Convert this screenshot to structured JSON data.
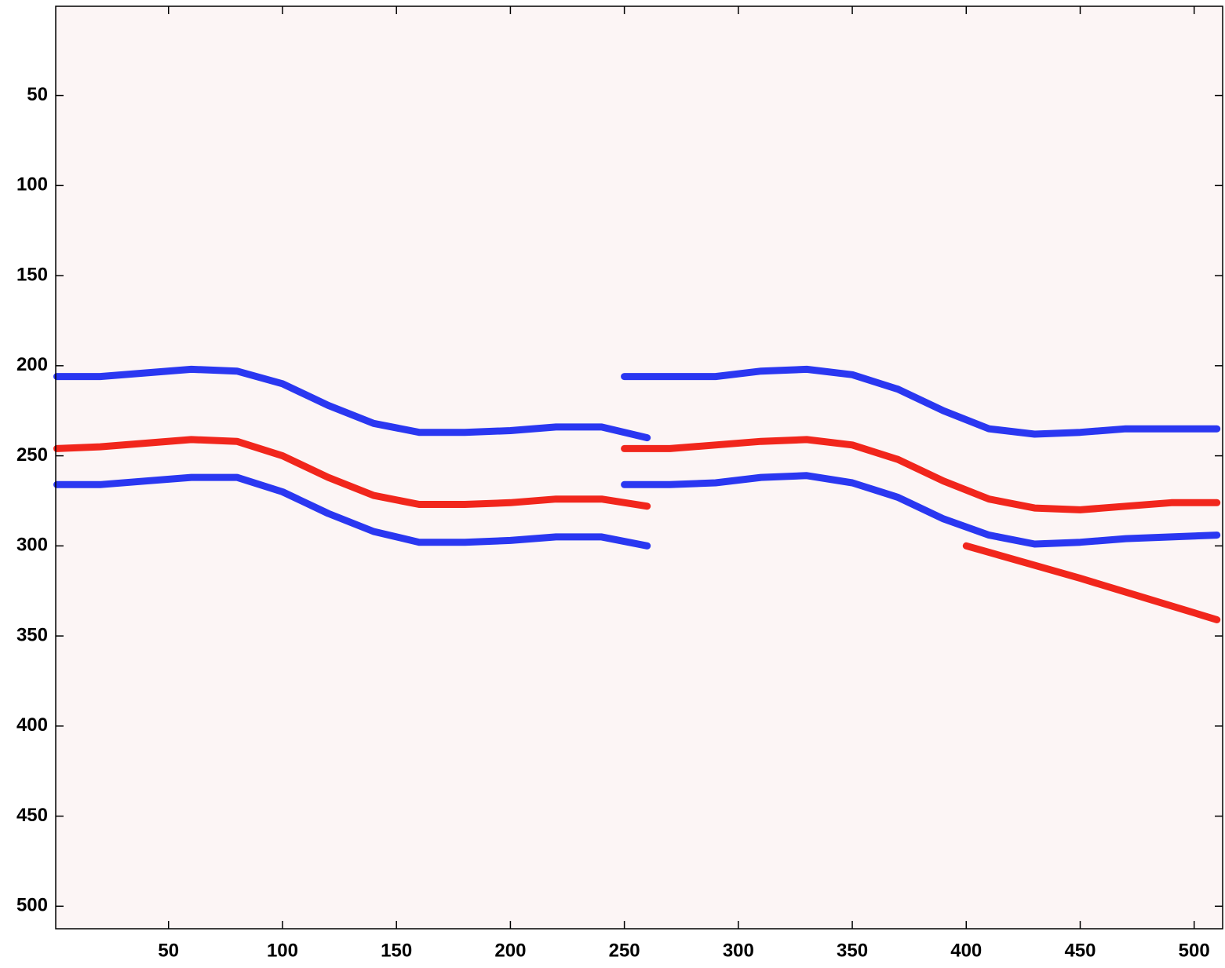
{
  "chart_data": {
    "type": "image",
    "xlim": [
      0.5,
      512.5
    ],
    "ylim": [
      512.5,
      0.5
    ],
    "xticks": [
      50,
      100,
      150,
      200,
      250,
      300,
      350,
      400,
      450,
      500
    ],
    "yticks": [
      50,
      100,
      150,
      200,
      250,
      300,
      350,
      400,
      450,
      500
    ],
    "background": "#fcf5f5",
    "series": [
      {
        "color": "#1f2cf0",
        "x": [
          1,
          20,
          40,
          60,
          80,
          100,
          120,
          140,
          160,
          180,
          200,
          220,
          240,
          260
        ],
        "values": [
          206,
          206,
          204,
          202,
          203,
          210,
          222,
          232,
          237,
          237,
          236,
          234,
          234,
          240
        ]
      },
      {
        "color": "#f01a10",
        "x": [
          1,
          20,
          40,
          60,
          80,
          100,
          120,
          140,
          160,
          180,
          200,
          220,
          240,
          260
        ],
        "values": [
          246,
          245,
          243,
          241,
          242,
          250,
          262,
          272,
          277,
          277,
          276,
          274,
          274,
          278
        ]
      },
      {
        "color": "#1f2cf0",
        "x": [
          1,
          20,
          40,
          60,
          80,
          100,
          120,
          140,
          160,
          180,
          200,
          220,
          240,
          260
        ],
        "values": [
          266,
          266,
          264,
          262,
          262,
          270,
          282,
          292,
          298,
          298,
          297,
          295,
          295,
          300
        ]
      },
      {
        "color": "#1f2cf0",
        "x": [
          250,
          270,
          290,
          310,
          330,
          350,
          370,
          390,
          410,
          430,
          450,
          470,
          490,
          510
        ],
        "values": [
          206,
          206,
          206,
          203,
          202,
          205,
          213,
          225,
          235,
          238,
          237,
          235,
          235,
          235
        ]
      },
      {
        "color": "#f01a10",
        "x": [
          250,
          270,
          290,
          310,
          330,
          350,
          370,
          390,
          410,
          430,
          450,
          470,
          490,
          510
        ],
        "values": [
          246,
          246,
          244,
          242,
          241,
          244,
          252,
          264,
          274,
          279,
          280,
          278,
          276,
          276
        ]
      },
      {
        "color": "#1f2cf0",
        "x": [
          250,
          270,
          290,
          310,
          330,
          350,
          370,
          390,
          410,
          430,
          450,
          470,
          490,
          510
        ],
        "values": [
          266,
          266,
          265,
          262,
          261,
          265,
          273,
          285,
          294,
          299,
          298,
          296,
          295,
          294
        ]
      },
      {
        "color": "#f01a10",
        "x": [
          400,
          450,
          510
        ],
        "values": [
          300,
          318,
          341
        ]
      }
    ]
  }
}
